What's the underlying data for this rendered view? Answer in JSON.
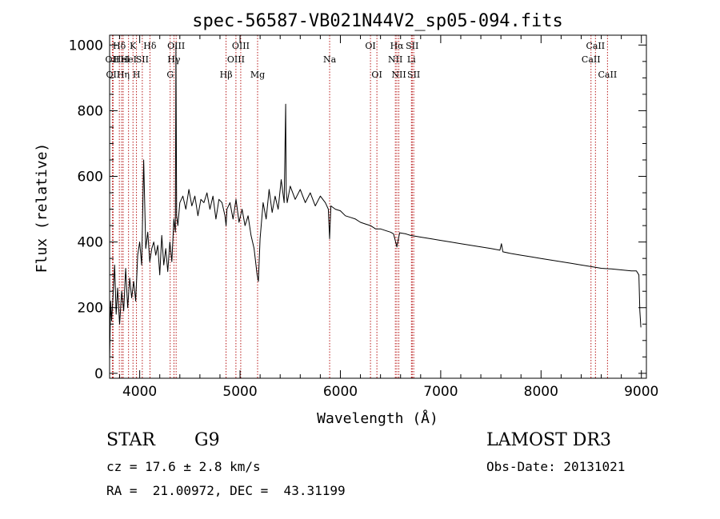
{
  "chart_data": {
    "type": "line",
    "title": "spec-56587-VB021N44V2_sp05-094.fits",
    "xlabel": "Wavelength (Å)",
    "ylabel": "Flux (relative)",
    "xlim": [
      3700,
      9050
    ],
    "ylim": [
      -15,
      1030
    ],
    "x_ticks": [
      4000,
      5000,
      6000,
      7000,
      8000,
      9000
    ],
    "y_ticks": [
      0,
      200,
      400,
      600,
      800,
      1000
    ],
    "series": [
      {
        "name": "spectrum",
        "x": [
          3700,
          3710,
          3720,
          3735,
          3750,
          3765,
          3780,
          3800,
          3820,
          3840,
          3860,
          3880,
          3900,
          3920,
          3940,
          3960,
          3980,
          4000,
          4020,
          4040,
          4060,
          4080,
          4100,
          4120,
          4140,
          4160,
          4180,
          4200,
          4220,
          4240,
          4260,
          4280,
          4300,
          4320,
          4340,
          4355,
          4361,
          4368,
          4380,
          4400,
          4430,
          4460,
          4490,
          4520,
          4550,
          4580,
          4610,
          4640,
          4670,
          4700,
          4730,
          4760,
          4790,
          4820,
          4850,
          4861,
          4870,
          4900,
          4930,
          4960,
          4990,
          5020,
          5050,
          5080,
          5110,
          5140,
          5170,
          5183,
          5200,
          5230,
          5260,
          5290,
          5320,
          5350,
          5380,
          5410,
          5440,
          5455,
          5460,
          5470,
          5500,
          5550,
          5600,
          5650,
          5700,
          5750,
          5800,
          5850,
          5880,
          5893,
          5905,
          5950,
          6000,
          6050,
          6100,
          6150,
          6200,
          6250,
          6300,
          6350,
          6400,
          6450,
          6500,
          6530,
          6563,
          6590,
          6650,
          6700,
          6800,
          6900,
          7000,
          7100,
          7200,
          7300,
          7400,
          7500,
          7590,
          7605,
          7620,
          7700,
          7800,
          7900,
          8000,
          8100,
          8200,
          8300,
          8400,
          8500,
          8600,
          8700,
          8800,
          8900,
          8950,
          8975,
          8985,
          8995
        ],
        "y": [
          40,
          220,
          160,
          240,
          330,
          180,
          260,
          150,
          250,
          190,
          320,
          200,
          290,
          230,
          280,
          220,
          360,
          400,
          330,
          650,
          380,
          430,
          340,
          380,
          400,
          360,
          390,
          300,
          420,
          330,
          380,
          310,
          400,
          340,
          470,
          430,
          1000,
          480,
          450,
          520,
          540,
          500,
          560,
          510,
          540,
          480,
          530,
          520,
          550,
          500,
          540,
          470,
          530,
          520,
          480,
          450,
          500,
          520,
          470,
          530,
          460,
          500,
          450,
          480,
          420,
          380,
          300,
          280,
          410,
          520,
          470,
          560,
          490,
          540,
          500,
          590,
          520,
          820,
          560,
          520,
          570,
          530,
          560,
          520,
          550,
          510,
          540,
          520,
          500,
          410,
          510,
          500,
          495,
          480,
          475,
          470,
          460,
          455,
          450,
          440,
          440,
          435,
          430,
          425,
          385,
          428,
          425,
          420,
          415,
          410,
          405,
          400,
          395,
          390,
          385,
          380,
          375,
          395,
          370,
          365,
          360,
          355,
          350,
          345,
          340,
          335,
          330,
          325,
          320,
          318,
          315,
          312,
          312,
          300,
          190,
          140
        ]
      }
    ],
    "line_marks": [
      {
        "x": 3727,
        "row": 1,
        "label": "OII"
      },
      {
        "x": 3735,
        "row": 2,
        "label": "OII"
      },
      {
        "x": 3797,
        "row": 0,
        "label": "Hδ"
      },
      {
        "x": 3820,
        "row": 1,
        "label": "HeI"
      },
      {
        "x": 3835,
        "row": 2,
        "label": "Hη"
      },
      {
        "x": 3889,
        "row": 1,
        "label": "HeI"
      },
      {
        "x": 3933,
        "row": 0,
        "label": "K"
      },
      {
        "x": 3968,
        "row": 2,
        "label": "H"
      },
      {
        "x": 4026,
        "row": 1,
        "label": "SII"
      },
      {
        "x": 4102,
        "row": 0,
        "label": "Hδ"
      },
      {
        "x": 4304,
        "row": 2,
        "label": "G"
      },
      {
        "x": 4341,
        "row": 1,
        "label": "Hγ"
      },
      {
        "x": 4363,
        "row": 0,
        "label": "OIII"
      },
      {
        "x": 4861,
        "row": 2,
        "label": "Hβ"
      },
      {
        "x": 4959,
        "row": 1,
        "label": "OIII"
      },
      {
        "x": 5007,
        "row": 0,
        "label": "OIII"
      },
      {
        "x": 5175,
        "row": 2,
        "label": "Mg"
      },
      {
        "x": 5893,
        "row": 1,
        "label": "Na"
      },
      {
        "x": 6300,
        "row": 0,
        "label": "OI"
      },
      {
        "x": 6364,
        "row": 2,
        "label": "OI"
      },
      {
        "x": 6548,
        "row": 1,
        "label": "NII"
      },
      {
        "x": 6563,
        "row": 0,
        "label": "Hα"
      },
      {
        "x": 6583,
        "row": 2,
        "label": "NII"
      },
      {
        "x": 6708,
        "row": 1,
        "label": "Li"
      },
      {
        "x": 6716,
        "row": 0,
        "label": "SII"
      },
      {
        "x": 6731,
        "row": 2,
        "label": "SII"
      },
      {
        "x": 8498,
        "row": 1,
        "label": "CaII"
      },
      {
        "x": 8542,
        "row": 0,
        "label": "CaII"
      },
      {
        "x": 8662,
        "row": 2,
        "label": "CaII"
      }
    ]
  },
  "info": {
    "star_label": "STAR",
    "subclass": "G9",
    "survey": "LAMOST DR3",
    "cz_text": "cz = 17.6 ± 2.8 km/s",
    "obs_date": "Obs-Date: 20131021",
    "radec_text": "RA =  21.00972, DEC =  43.31199"
  },
  "colors": {
    "spectrum": "#000000",
    "line_marks": "#b00000"
  }
}
